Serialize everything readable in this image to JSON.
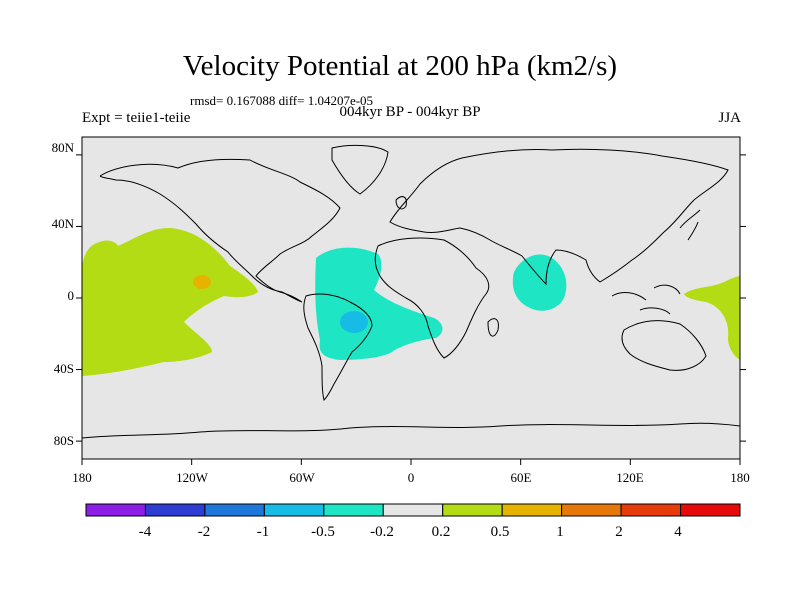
{
  "title": "Velocity Potential at 200 hPa (km2/s)",
  "stats_line": "rmsd= 0.167088 diff= 1.04207e-05",
  "left_label": "Expt = teiie1-teiie",
  "center_label": "004kyr BP - 004kyr BP",
  "right_label": "JJA",
  "lat_ticks": [
    "80N",
    "40N",
    "0",
    "40S",
    "80S"
  ],
  "lon_ticks": [
    "180",
    "120W",
    "60W",
    "0",
    "60E",
    "120E",
    "180"
  ],
  "colorbar": {
    "colors": [
      "#8c1ee6",
      "#2d3cd2",
      "#1e78dc",
      "#16bce6",
      "#1ee6c4",
      "#e6e6e6",
      "#b4dc14",
      "#e6b400",
      "#e6780a",
      "#e63c0a",
      "#e60a0a"
    ],
    "labels": [
      "-4",
      "-2",
      "-1",
      "-0.5",
      "-0.2",
      "0.2",
      "0.5",
      "1",
      "2",
      "4"
    ]
  },
  "colors": {
    "ocean_background": "#e6e6e6",
    "positive_02_05": "#b4dc14",
    "positive_05_1": "#e6b400",
    "negative_02_05": "#1ee6c4",
    "negative_05_1": "#16bce6"
  }
}
